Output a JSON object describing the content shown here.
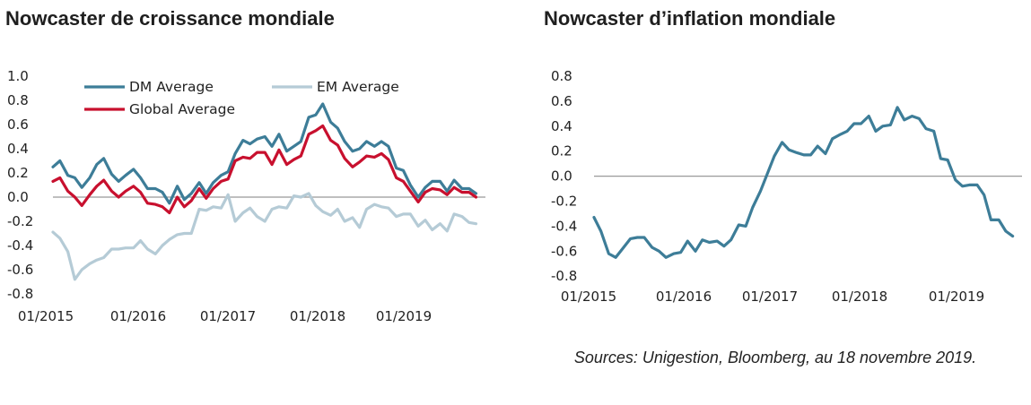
{
  "titles": {
    "left": "Nowcaster de croissance mondiale",
    "right": "Nowcaster d’inflation mondiale"
  },
  "sources": "Sources: Unigestion, Bloomberg, au 18 novembre 2019.",
  "colors": {
    "dm": "#3d7d98",
    "em": "#b5cbd6",
    "global": "#c8102e",
    "zero_line": "#999999"
  },
  "chart_data": [
    {
      "type": "line",
      "title": "Nowcaster de croissance mondiale",
      "xlabel": "",
      "ylabel": "",
      "x_range": [
        2015.0,
        2019.917
      ],
      "ylim": [
        -0.8,
        1.0
      ],
      "yticks": [
        "1.0",
        "0.8",
        "0.6",
        "0.4",
        "0.2",
        "0.0",
        "-0.2",
        "-0.4",
        "-0.6",
        "-0.8"
      ],
      "ytick_values": [
        1.0,
        0.8,
        0.6,
        0.4,
        0.2,
        0.0,
        -0.2,
        -0.4,
        -0.6,
        -0.8
      ],
      "xticks": [
        "01/2015",
        "01/2016",
        "01/2017",
        "01/2018",
        "01/2019"
      ],
      "xtick_values": [
        2015,
        2016,
        2017,
        2018,
        2019
      ],
      "legend_placement": "top",
      "grid": false,
      "series": [
        {
          "name": "DM Average",
          "color": "#3d7d98",
          "points": [
            [
              2015.0,
              0.25
            ],
            [
              2015.08,
              0.3
            ],
            [
              2015.17,
              0.18
            ],
            [
              2015.25,
              0.16
            ],
            [
              2015.33,
              0.08
            ],
            [
              2015.42,
              0.16
            ],
            [
              2015.5,
              0.27
            ],
            [
              2015.58,
              0.32
            ],
            [
              2015.67,
              0.19
            ],
            [
              2015.75,
              0.13
            ],
            [
              2015.83,
              0.18
            ],
            [
              2015.92,
              0.23
            ],
            [
              2016.0,
              0.16
            ],
            [
              2016.08,
              0.07
            ],
            [
              2016.17,
              0.07
            ],
            [
              2016.25,
              0.04
            ],
            [
              2016.33,
              -0.05
            ],
            [
              2016.42,
              0.09
            ],
            [
              2016.5,
              -0.02
            ],
            [
              2016.58,
              0.03
            ],
            [
              2016.67,
              0.12
            ],
            [
              2016.75,
              0.03
            ],
            [
              2016.83,
              0.12
            ],
            [
              2016.92,
              0.18
            ],
            [
              2017.0,
              0.21
            ],
            [
              2017.08,
              0.36
            ],
            [
              2017.17,
              0.47
            ],
            [
              2017.25,
              0.44
            ],
            [
              2017.33,
              0.48
            ],
            [
              2017.42,
              0.5
            ],
            [
              2017.5,
              0.42
            ],
            [
              2017.58,
              0.52
            ],
            [
              2017.67,
              0.38
            ],
            [
              2017.75,
              0.42
            ],
            [
              2017.83,
              0.46
            ],
            [
              2017.92,
              0.66
            ],
            [
              2018.0,
              0.68
            ],
            [
              2018.08,
              0.77
            ],
            [
              2018.17,
              0.62
            ],
            [
              2018.25,
              0.57
            ],
            [
              2018.33,
              0.46
            ],
            [
              2018.42,
              0.38
            ],
            [
              2018.5,
              0.4
            ],
            [
              2018.58,
              0.46
            ],
            [
              2018.67,
              0.42
            ],
            [
              2018.75,
              0.46
            ],
            [
              2018.83,
              0.42
            ],
            [
              2018.92,
              0.24
            ],
            [
              2019.0,
              0.22
            ],
            [
              2019.08,
              0.1
            ],
            [
              2019.17,
              0.0
            ],
            [
              2019.25,
              0.08
            ],
            [
              2019.33,
              0.13
            ],
            [
              2019.42,
              0.13
            ],
            [
              2019.5,
              0.05
            ],
            [
              2019.58,
              0.14
            ],
            [
              2019.67,
              0.07
            ],
            [
              2019.75,
              0.07
            ],
            [
              2019.83,
              0.03
            ]
          ]
        },
        {
          "name": "EM Average",
          "color": "#b5cbd6",
          "points": [
            [
              2015.0,
              -0.29
            ],
            [
              2015.08,
              -0.34
            ],
            [
              2015.17,
              -0.45
            ],
            [
              2015.25,
              -0.68
            ],
            [
              2015.33,
              -0.6
            ],
            [
              2015.42,
              -0.55
            ],
            [
              2015.5,
              -0.52
            ],
            [
              2015.58,
              -0.5
            ],
            [
              2015.67,
              -0.43
            ],
            [
              2015.75,
              -0.43
            ],
            [
              2015.83,
              -0.42
            ],
            [
              2015.92,
              -0.42
            ],
            [
              2016.0,
              -0.36
            ],
            [
              2016.08,
              -0.43
            ],
            [
              2016.17,
              -0.47
            ],
            [
              2016.25,
              -0.4
            ],
            [
              2016.33,
              -0.35
            ],
            [
              2016.42,
              -0.31
            ],
            [
              2016.5,
              -0.3
            ],
            [
              2016.58,
              -0.3
            ],
            [
              2016.67,
              -0.1
            ],
            [
              2016.75,
              -0.11
            ],
            [
              2016.83,
              -0.08
            ],
            [
              2016.92,
              -0.09
            ],
            [
              2017.0,
              0.02
            ],
            [
              2017.08,
              -0.2
            ],
            [
              2017.17,
              -0.13
            ],
            [
              2017.25,
              -0.09
            ],
            [
              2017.33,
              -0.16
            ],
            [
              2017.42,
              -0.2
            ],
            [
              2017.5,
              -0.1
            ],
            [
              2017.58,
              -0.08
            ],
            [
              2017.67,
              -0.09
            ],
            [
              2017.75,
              0.01
            ],
            [
              2017.83,
              0.0
            ],
            [
              2017.92,
              0.03
            ],
            [
              2018.0,
              -0.07
            ],
            [
              2018.08,
              -0.12
            ],
            [
              2018.17,
              -0.15
            ],
            [
              2018.25,
              -0.1
            ],
            [
              2018.33,
              -0.2
            ],
            [
              2018.42,
              -0.17
            ],
            [
              2018.5,
              -0.25
            ],
            [
              2018.58,
              -0.1
            ],
            [
              2018.67,
              -0.06
            ],
            [
              2018.75,
              -0.08
            ],
            [
              2018.83,
              -0.09
            ],
            [
              2018.92,
              -0.16
            ],
            [
              2019.0,
              -0.14
            ],
            [
              2019.08,
              -0.14
            ],
            [
              2019.17,
              -0.24
            ],
            [
              2019.25,
              -0.19
            ],
            [
              2019.33,
              -0.27
            ],
            [
              2019.42,
              -0.22
            ],
            [
              2019.5,
              -0.28
            ],
            [
              2019.58,
              -0.14
            ],
            [
              2019.67,
              -0.16
            ],
            [
              2019.75,
              -0.21
            ],
            [
              2019.83,
              -0.22
            ]
          ]
        },
        {
          "name": "Global Average",
          "color": "#c8102e",
          "points": [
            [
              2015.0,
              0.13
            ],
            [
              2015.08,
              0.16
            ],
            [
              2015.17,
              0.05
            ],
            [
              2015.25,
              0.0
            ],
            [
              2015.33,
              -0.07
            ],
            [
              2015.42,
              0.02
            ],
            [
              2015.5,
              0.09
            ],
            [
              2015.58,
              0.14
            ],
            [
              2015.67,
              0.05
            ],
            [
              2015.75,
              0.0
            ],
            [
              2015.83,
              0.05
            ],
            [
              2015.92,
              0.09
            ],
            [
              2016.0,
              0.04
            ],
            [
              2016.08,
              -0.05
            ],
            [
              2016.17,
              -0.06
            ],
            [
              2016.25,
              -0.08
            ],
            [
              2016.33,
              -0.13
            ],
            [
              2016.42,
              0.0
            ],
            [
              2016.5,
              -0.08
            ],
            [
              2016.58,
              -0.03
            ],
            [
              2016.67,
              0.07
            ],
            [
              2016.75,
              -0.01
            ],
            [
              2016.83,
              0.07
            ],
            [
              2016.92,
              0.13
            ],
            [
              2017.0,
              0.15
            ],
            [
              2017.08,
              0.3
            ],
            [
              2017.17,
              0.33
            ],
            [
              2017.25,
              0.32
            ],
            [
              2017.33,
              0.37
            ],
            [
              2017.42,
              0.37
            ],
            [
              2017.5,
              0.27
            ],
            [
              2017.58,
              0.39
            ],
            [
              2017.67,
              0.27
            ],
            [
              2017.75,
              0.31
            ],
            [
              2017.83,
              0.34
            ],
            [
              2017.92,
              0.52
            ],
            [
              2018.0,
              0.55
            ],
            [
              2018.08,
              0.59
            ],
            [
              2018.17,
              0.47
            ],
            [
              2018.25,
              0.43
            ],
            [
              2018.33,
              0.32
            ],
            [
              2018.42,
              0.25
            ],
            [
              2018.5,
              0.29
            ],
            [
              2018.58,
              0.34
            ],
            [
              2018.67,
              0.33
            ],
            [
              2018.75,
              0.36
            ],
            [
              2018.83,
              0.31
            ],
            [
              2018.92,
              0.16
            ],
            [
              2019.0,
              0.13
            ],
            [
              2019.08,
              0.05
            ],
            [
              2019.17,
              -0.04
            ],
            [
              2019.25,
              0.04
            ],
            [
              2019.33,
              0.07
            ],
            [
              2019.42,
              0.06
            ],
            [
              2019.5,
              0.02
            ],
            [
              2019.58,
              0.08
            ],
            [
              2019.67,
              0.04
            ],
            [
              2019.75,
              0.04
            ],
            [
              2019.83,
              0.0
            ]
          ]
        }
      ]
    },
    {
      "type": "line",
      "title": "Nowcaster d’inflation mondiale",
      "xlabel": "",
      "ylabel": "",
      "x_range": [
        2015.0,
        2019.917
      ],
      "ylim": [
        -0.8,
        0.8
      ],
      "yticks": [
        "0.8",
        "0.6",
        "0.4",
        "0.2",
        "0.0",
        "-0.2",
        "-0.4",
        "-0.6",
        "-0.8"
      ],
      "ytick_values": [
        0.8,
        0.6,
        0.4,
        0.2,
        0.0,
        -0.2,
        -0.4,
        -0.6,
        -0.8
      ],
      "xticks": [
        "01/2015",
        "01/2016",
        "01/2017",
        "01/2018",
        "01/2019"
      ],
      "xtick_values": [
        2015,
        2016,
        2017,
        2018,
        2019
      ],
      "grid": false,
      "series": [
        {
          "name": "",
          "color": "#3d7d98",
          "points": [
            [
              2015.0,
              -0.33
            ],
            [
              2015.08,
              -0.44
            ],
            [
              2015.17,
              -0.62
            ],
            [
              2015.25,
              -0.65
            ],
            [
              2015.33,
              -0.58
            ],
            [
              2015.42,
              -0.5
            ],
            [
              2015.5,
              -0.49
            ],
            [
              2015.58,
              -0.49
            ],
            [
              2015.67,
              -0.57
            ],
            [
              2015.75,
              -0.6
            ],
            [
              2015.83,
              -0.65
            ],
            [
              2015.92,
              -0.62
            ],
            [
              2016.0,
              -0.61
            ],
            [
              2016.08,
              -0.52
            ],
            [
              2016.17,
              -0.6
            ],
            [
              2016.25,
              -0.51
            ],
            [
              2016.33,
              -0.53
            ],
            [
              2016.42,
              -0.52
            ],
            [
              2016.5,
              -0.56
            ],
            [
              2016.58,
              -0.51
            ],
            [
              2016.67,
              -0.39
            ],
            [
              2016.75,
              -0.4
            ],
            [
              2016.83,
              -0.25
            ],
            [
              2016.92,
              -0.12
            ],
            [
              2017.0,
              0.02
            ],
            [
              2017.08,
              0.16
            ],
            [
              2017.17,
              0.27
            ],
            [
              2017.25,
              0.21
            ],
            [
              2017.33,
              0.19
            ],
            [
              2017.42,
              0.17
            ],
            [
              2017.5,
              0.17
            ],
            [
              2017.58,
              0.24
            ],
            [
              2017.67,
              0.18
            ],
            [
              2017.75,
              0.3
            ],
            [
              2017.83,
              0.33
            ],
            [
              2017.92,
              0.36
            ],
            [
              2018.0,
              0.42
            ],
            [
              2018.08,
              0.42
            ],
            [
              2018.17,
              0.48
            ],
            [
              2018.25,
              0.36
            ],
            [
              2018.33,
              0.4
            ],
            [
              2018.42,
              0.41
            ],
            [
              2018.5,
              0.55
            ],
            [
              2018.58,
              0.45
            ],
            [
              2018.67,
              0.48
            ],
            [
              2018.75,
              0.46
            ],
            [
              2018.83,
              0.38
            ],
            [
              2018.92,
              0.36
            ],
            [
              2019.0,
              0.14
            ],
            [
              2019.08,
              0.13
            ],
            [
              2019.17,
              -0.03
            ],
            [
              2019.25,
              -0.08
            ],
            [
              2019.33,
              -0.07
            ],
            [
              2019.42,
              -0.07
            ],
            [
              2019.5,
              -0.15
            ],
            [
              2019.58,
              -0.35
            ],
            [
              2019.67,
              -0.35
            ],
            [
              2019.75,
              -0.44
            ],
            [
              2019.83,
              -0.48
            ]
          ]
        }
      ]
    }
  ]
}
